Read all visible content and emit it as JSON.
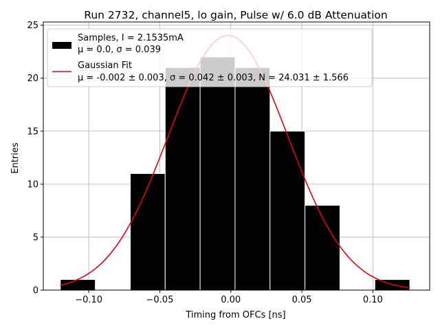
{
  "chart_data": {
    "type": "bar",
    "title": "Run 2732, channel5, lo gain, Pulse w/ 6.0 dB Attenuation",
    "xlabel": "Timing from OFCs [ns]",
    "ylabel": "Entries",
    "xlim": [
      -0.132,
      0.14
    ],
    "ylim": [
      0,
      25.3
    ],
    "x_ticks": [
      -0.1,
      -0.05,
      0.0,
      0.05,
      0.1
    ],
    "x_tick_labels": [
      "−0.10",
      "−0.05",
      "0.00",
      "0.05",
      "0.10"
    ],
    "y_ticks": [
      0,
      5,
      10,
      15,
      20,
      25
    ],
    "y_tick_labels": [
      "0",
      "5",
      "10",
      "15",
      "20",
      "25"
    ],
    "grid": true,
    "legend_position": "top-left",
    "histogram": {
      "name": "Samples, I = 2.1535mA",
      "stats": "μ = 0.0, σ = 0.039",
      "color": "#000000",
      "bins": [
        {
          "left": -0.12,
          "right": -0.0954,
          "value": 1
        },
        {
          "left": -0.0954,
          "right": -0.0708,
          "value": 0
        },
        {
          "left": -0.0708,
          "right": -0.0462,
          "value": 11
        },
        {
          "left": -0.0462,
          "right": -0.0216,
          "value": 21
        },
        {
          "left": -0.0216,
          "right": 0.003,
          "value": 22
        },
        {
          "left": 0.003,
          "right": 0.0276,
          "value": 21
        },
        {
          "left": 0.0276,
          "right": 0.0522,
          "value": 15
        },
        {
          "left": 0.0522,
          "right": 0.0768,
          "value": 8
        },
        {
          "left": 0.0768,
          "right": 0.1014,
          "value": 0
        },
        {
          "left": 0.1014,
          "right": 0.126,
          "value": 1
        }
      ]
    },
    "fit": {
      "name": "Gaussian Fit",
      "stats": "μ = -0.002 ± 0.003, σ = 0.042 ± 0.003, N = 24.031 ± 1.566",
      "color": "#e8000b",
      "mu": -0.002,
      "sigma": 0.042,
      "N": 24.031,
      "x_range": [
        -0.12,
        0.126
      ]
    }
  }
}
